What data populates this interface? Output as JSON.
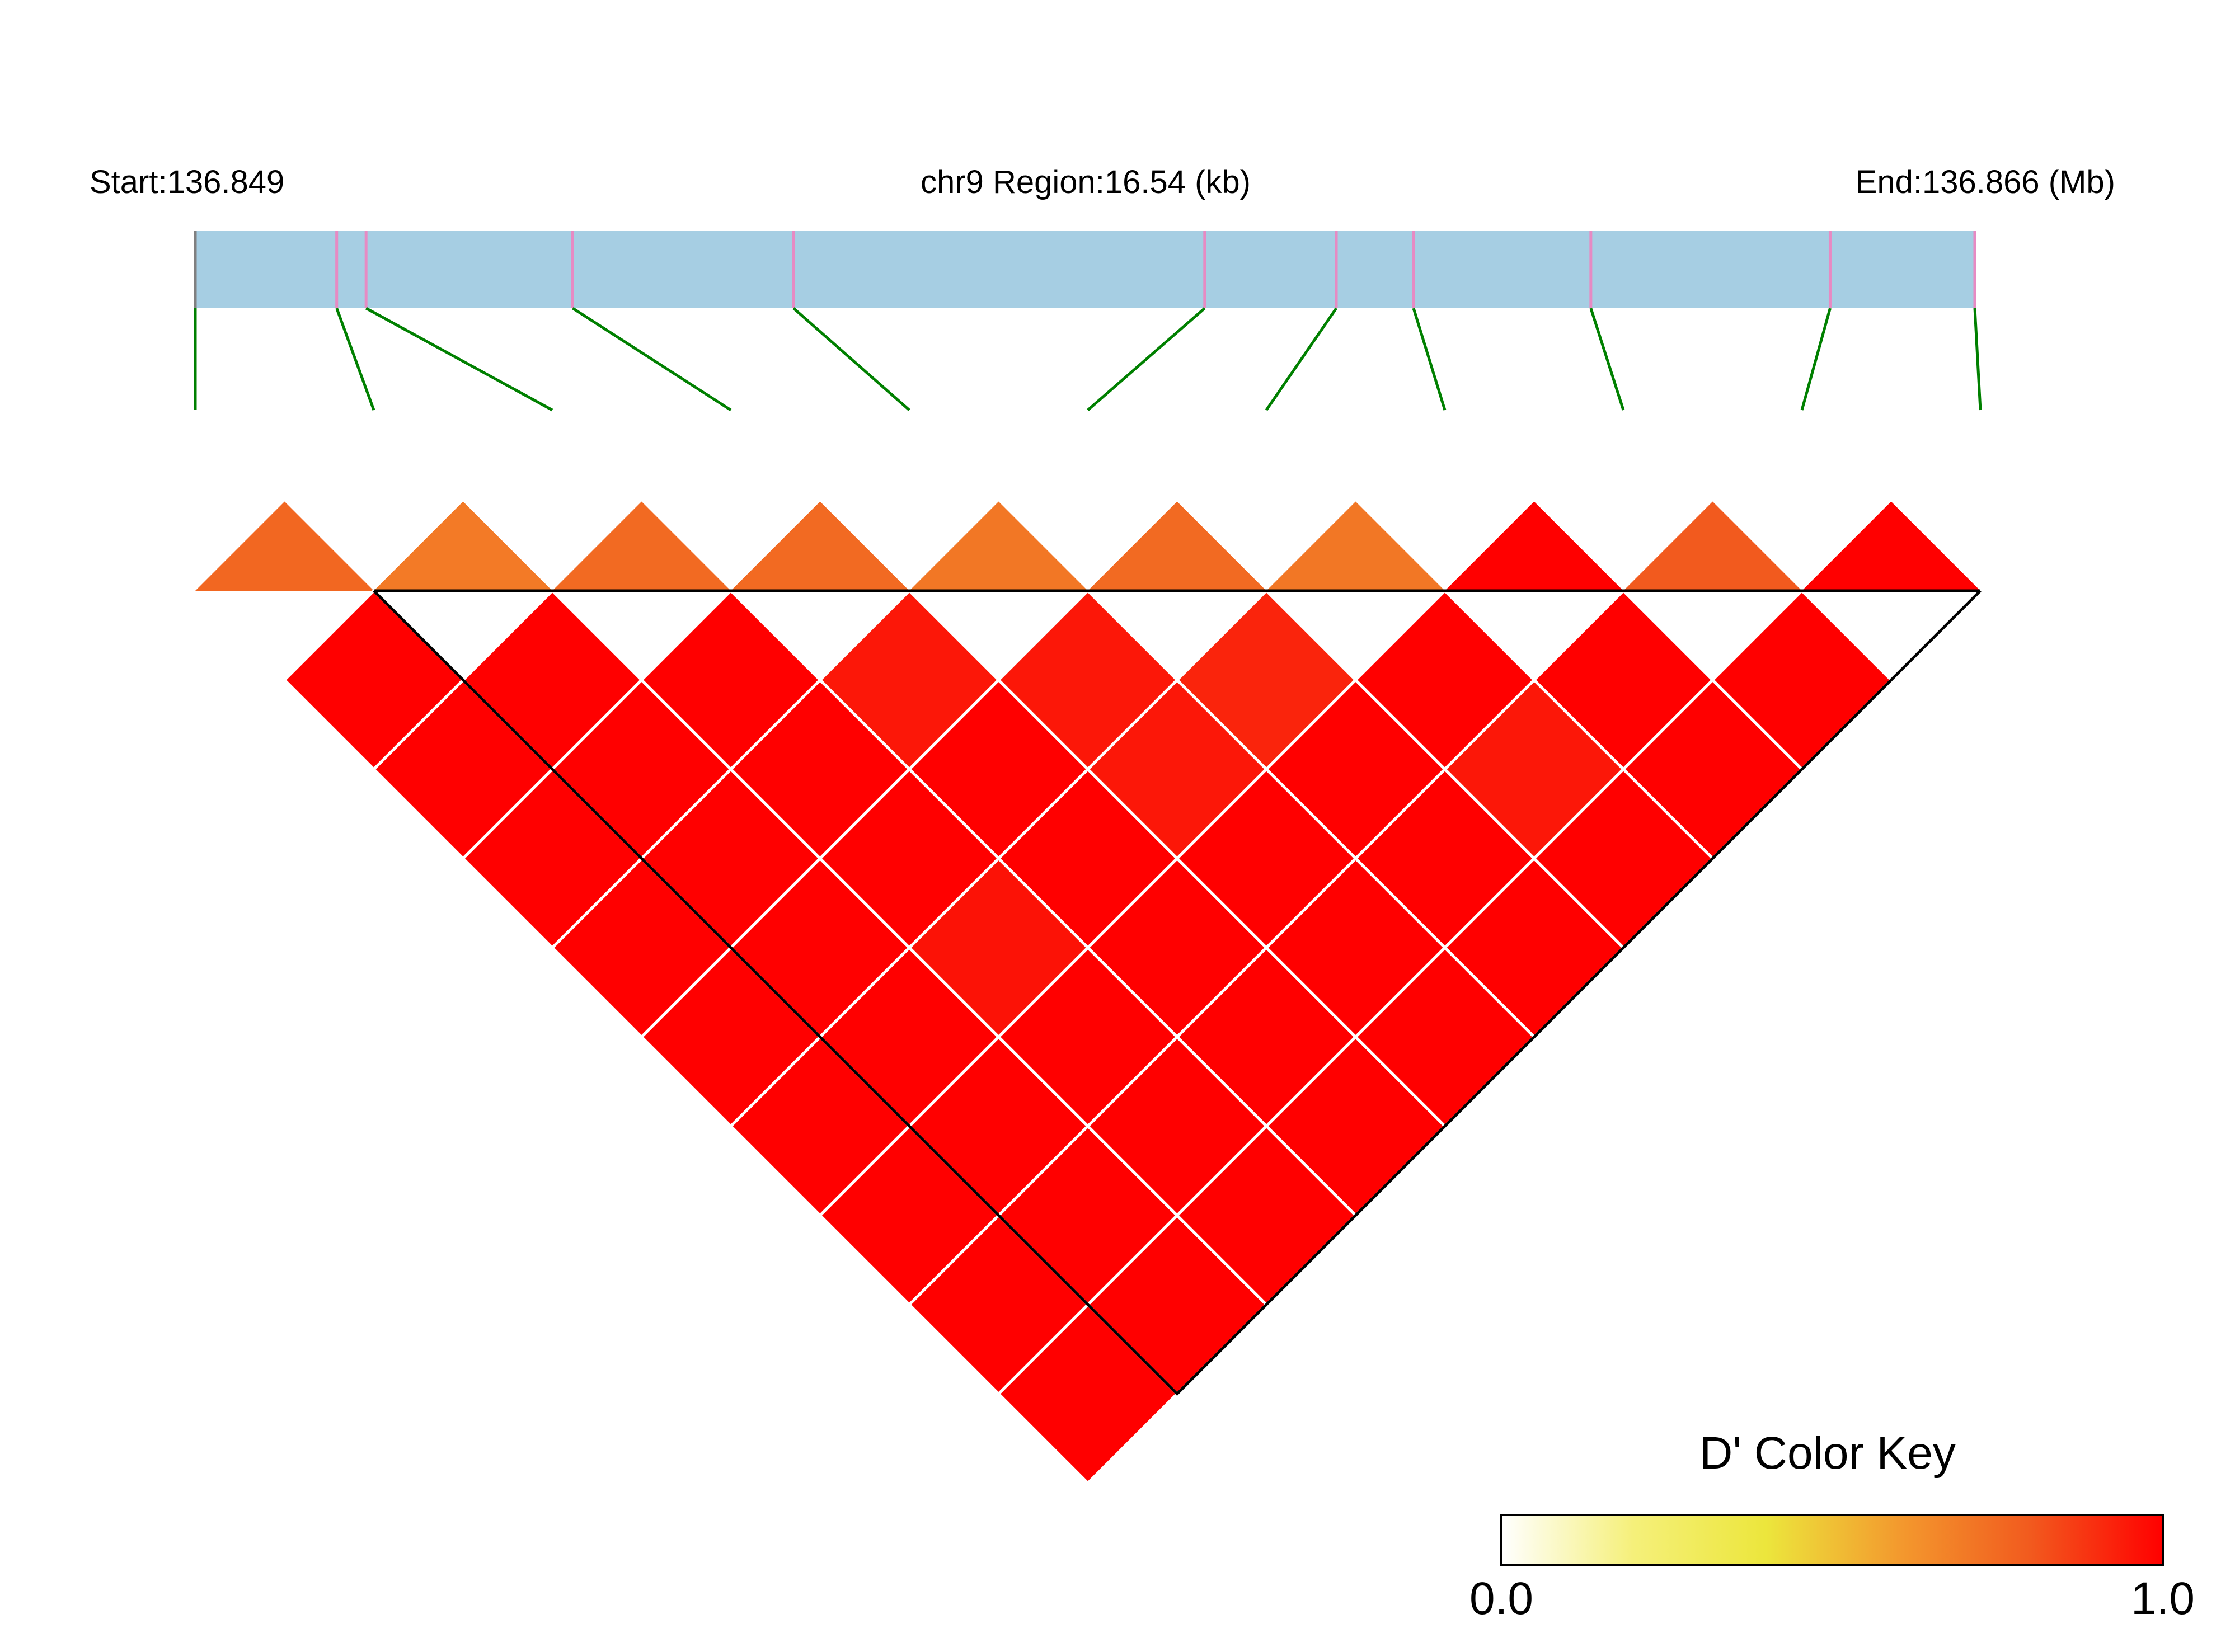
{
  "chart_data": {
    "type": "heatmap",
    "region": {
      "start_label": "Start:136.849",
      "center_label": "chr9 Region:16.54 (kb)",
      "end_label": "End:136.866 (Mb)"
    },
    "snp_positions_kb": [
      0,
      1.3,
      1.57,
      3.47,
      5.5,
      9.28,
      10.49,
      11.2,
      12.83,
      15.03,
      16.36
    ],
    "color_key": {
      "title": "D' Color Key",
      "min_label": "0.0",
      "max_label": "1.0",
      "range": [
        0,
        1
      ],
      "gradient": [
        "#ffffff",
        "#f5f07a",
        "#ece63c",
        "#f39a2e",
        "#f25a1e",
        "#ff0000"
      ]
    },
    "d_prime_lower_triangle": [
      [],
      [
        0.76
      ],
      [
        1.0,
        0.7
      ],
      [
        1.0,
        1.0,
        0.75
      ],
      [
        1.0,
        1.0,
        1.0,
        0.75
      ],
      [
        1.0,
        1.0,
        1.0,
        0.95,
        0.71
      ],
      [
        1.0,
        1.0,
        1.0,
        1.0,
        0.95,
        0.75
      ],
      [
        1.0,
        1.0,
        0.96,
        1.0,
        0.95,
        0.92,
        0.71
      ],
      [
        1.0,
        1.0,
        1.0,
        1.0,
        1.0,
        1.0,
        1.0,
        1.0
      ],
      [
        1.0,
        1.0,
        1.0,
        1.0,
        1.0,
        1.0,
        0.95,
        1.0,
        0.8
      ],
      [
        1.0,
        1.0,
        1.0,
        1.0,
        1.0,
        1.0,
        1.0,
        1.0,
        1.0,
        1.0
      ]
    ],
    "block_snp_range": [
      1,
      10
    ]
  }
}
